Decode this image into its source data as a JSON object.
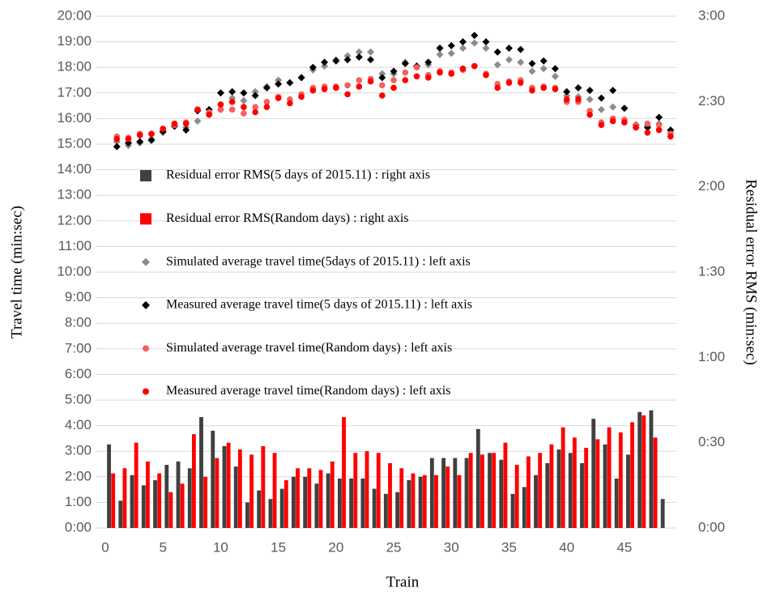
{
  "chart_data": {
    "type": "bar",
    "xlabel": "Train",
    "ylabel": "Travel time (min:sec)",
    "y2label": "Residual error RMS (min:sec)",
    "x": [
      1,
      2,
      3,
      4,
      5,
      6,
      7,
      8,
      9,
      10,
      11,
      12,
      13,
      14,
      15,
      16,
      17,
      18,
      19,
      20,
      21,
      22,
      23,
      24,
      25,
      26,
      27,
      28,
      29,
      30,
      31,
      32,
      33,
      34,
      35,
      36,
      37,
      38,
      39,
      40,
      41,
      42,
      43,
      44,
      45,
      46,
      47,
      48,
      49
    ],
    "xlim": [
      0,
      49.5
    ],
    "xticks": [
      0,
      5,
      10,
      15,
      20,
      25,
      30,
      35,
      40,
      45
    ],
    "ylim": [
      0,
      20
    ],
    "yticks": [
      {
        "value": 0,
        "label": "0:00"
      },
      {
        "value": 1,
        "label": "1:00"
      },
      {
        "value": 2,
        "label": "2:00"
      },
      {
        "value": 3,
        "label": "3:00"
      },
      {
        "value": 4,
        "label": "4:00"
      },
      {
        "value": 5,
        "label": "5:00"
      },
      {
        "value": 6,
        "label": "6:00"
      },
      {
        "value": 7,
        "label": "7:00"
      },
      {
        "value": 8,
        "label": "8:00"
      },
      {
        "value": 9,
        "label": "9:00"
      },
      {
        "value": 10,
        "label": "10:00"
      },
      {
        "value": 11,
        "label": "11:00"
      },
      {
        "value": 12,
        "label": "12:00"
      },
      {
        "value": 13,
        "label": "13:00"
      },
      {
        "value": 14,
        "label": "14:00"
      },
      {
        "value": 15,
        "label": "15:00"
      },
      {
        "value": 16,
        "label": "16:00"
      },
      {
        "value": 17,
        "label": "17:00"
      },
      {
        "value": 18,
        "label": "18:00"
      },
      {
        "value": 19,
        "label": "19:00"
      },
      {
        "value": 20,
        "label": "20:00"
      }
    ],
    "y2lim": [
      0,
      3
    ],
    "y2ticks": [
      {
        "value": 0,
        "label": "0:00"
      },
      {
        "value": 0.5,
        "label": "0:30"
      },
      {
        "value": 1,
        "label": "1:00"
      },
      {
        "value": 1.5,
        "label": "1:30"
      },
      {
        "value": 2,
        "label": "2:00"
      },
      {
        "value": 2.5,
        "label": "2:30"
      },
      {
        "value": 3,
        "label": "3:00"
      }
    ],
    "grid": true,
    "legend": "left",
    "series": [
      {
        "name": "Residual error RMS(5 days of 2015.11) : right axis",
        "type": "bar",
        "axis": "y2",
        "color": "#404040",
        "values": [
          0.49,
          0.16,
          0.31,
          0.25,
          0.28,
          0.37,
          0.39,
          0.35,
          0.65,
          0.57,
          0.48,
          0.36,
          0.15,
          0.22,
          0.17,
          0.23,
          0.3,
          0.3,
          0.26,
          0.32,
          0.29,
          0.29,
          0.29,
          0.23,
          0.2,
          0.21,
          0.28,
          0.3,
          0.41,
          0.41,
          0.41,
          0.41,
          0.58,
          0.44,
          0.4,
          0.2,
          0.24,
          0.31,
          0.38,
          0.46,
          0.44,
          0.38,
          0.64,
          0.49,
          0.29,
          0.43,
          0.68,
          0.69,
          0.17
        ]
      },
      {
        "name": "Residual error RMS(Random days) : right axis",
        "type": "bar",
        "axis": "y2",
        "color": "#ff0000",
        "values": [
          0.32,
          0.35,
          0.5,
          0.39,
          0.32,
          0.21,
          0.26,
          0.55,
          0.3,
          0.41,
          0.5,
          0.46,
          0.43,
          0.48,
          0.44,
          0.28,
          0.35,
          0.35,
          0.34,
          0.39,
          0.65,
          0.44,
          0.45,
          0.44,
          0.38,
          0.35,
          0.32,
          0.31,
          0.31,
          0.36,
          0.31,
          0.44,
          0.43,
          0.44,
          0.5,
          0.37,
          0.42,
          0.44,
          0.49,
          0.59,
          0.53,
          0.47,
          0.52,
          0.59,
          0.56,
          0.62,
          0.66,
          0.53,
          null
        ]
      },
      {
        "name": "Simulated average travel time(5days of 2015.11) : left axis",
        "type": "diamond",
        "color": "#8c8c8c",
        "values": [
          15.1,
          14.95,
          15.05,
          15.2,
          15.45,
          15.7,
          15.65,
          15.9,
          16.2,
          16.35,
          16.8,
          16.7,
          17.05,
          17.25,
          17.5,
          17.4,
          17.6,
          17.9,
          18.05,
          18.3,
          18.45,
          18.6,
          18.6,
          17.75,
          17.75,
          18.2,
          18.05,
          18.1,
          18.5,
          18.55,
          18.75,
          18.95,
          18.75,
          18.1,
          18.3,
          18.2,
          17.85,
          17.95,
          17.65,
          16.9,
          16.85,
          16.75,
          16.35,
          16.45,
          15.95,
          15.65,
          15.7,
          15.8,
          15.45
        ]
      },
      {
        "name": "Measured average travel time(5 days of 2015.11) : left axis",
        "type": "diamond",
        "color": "#000000",
        "values": [
          14.9,
          15.05,
          15.1,
          15.15,
          15.5,
          15.7,
          15.55,
          16.3,
          16.35,
          17.0,
          17.05,
          17.0,
          16.9,
          17.2,
          17.35,
          17.4,
          17.6,
          18.0,
          18.2,
          18.25,
          18.3,
          18.4,
          18.3,
          17.6,
          17.85,
          18.15,
          18.05,
          18.2,
          18.75,
          18.85,
          19.0,
          19.25,
          19.0,
          18.6,
          18.75,
          18.7,
          18.15,
          18.25,
          17.95,
          17.05,
          17.2,
          17.1,
          16.8,
          17.1,
          16.4,
          15.75,
          15.65,
          16.05,
          15.55
        ]
      },
      {
        "name": "Simulated average travel time(Random days) : left axis",
        "type": "circle",
        "color": "#f4605c",
        "values": [
          15.3,
          15.25,
          15.4,
          15.4,
          15.6,
          15.75,
          15.85,
          16.35,
          16.25,
          16.35,
          16.35,
          16.2,
          16.45,
          16.65,
          16.85,
          16.75,
          16.95,
          17.2,
          17.25,
          17.25,
          17.3,
          17.5,
          17.55,
          17.3,
          17.5,
          17.8,
          18.0,
          17.7,
          17.85,
          17.8,
          17.9,
          18.05,
          17.75,
          17.35,
          17.45,
          17.5,
          17.2,
          17.25,
          17.2,
          16.65,
          16.65,
          16.3,
          15.85,
          16.0,
          15.95,
          15.75,
          15.8,
          15.75,
          15.4
        ]
      },
      {
        "name": "Measured average travel time(Random days) : left axis",
        "type": "circle",
        "color": "#ff0000",
        "values": [
          15.2,
          15.2,
          15.35,
          15.4,
          15.6,
          15.8,
          15.8,
          16.35,
          16.15,
          16.55,
          16.65,
          16.45,
          16.25,
          16.45,
          16.8,
          16.6,
          16.85,
          17.1,
          17.15,
          17.2,
          16.95,
          17.25,
          17.45,
          16.9,
          17.2,
          17.5,
          17.65,
          17.6,
          17.8,
          17.75,
          17.95,
          18.05,
          17.7,
          17.2,
          17.4,
          17.4,
          17.1,
          17.2,
          17.15,
          16.75,
          16.75,
          16.15,
          15.75,
          15.9,
          15.85,
          15.65,
          15.45,
          15.55,
          15.3
        ]
      }
    ]
  }
}
